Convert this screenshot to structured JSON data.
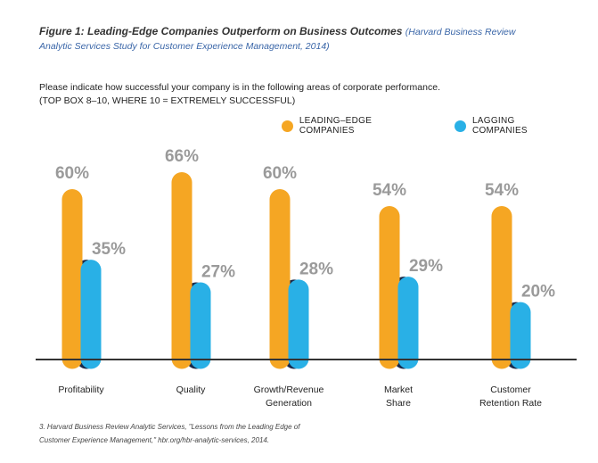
{
  "figure": {
    "title": "Figure 1: Leading-Edge Companies Outperform on Business Outcomes",
    "source_line_1": "(Harvard Business Review",
    "source_line_2": "Analytic Services Study for Customer Experience Management, 2014)"
  },
  "question": {
    "line1": "Please indicate how successful your company is in the following areas of corporate performance.",
    "line2": "(TOP BOX 8–10, WHERE 10 = EXTREMELY SUCCESSFUL)"
  },
  "footnote": {
    "line1": "3. Harvard Business Review Analytic Services, \"Lessons from the Leading Edge of",
    "line2": "Customer Experience Management,\" hbr.org/hbr-analytic-services, 2014."
  },
  "colors": {
    "leading": "#f5a623",
    "lagging": "#29b0e6",
    "lagging_shadow": "#1a2a4a",
    "value_label": "#9a9a9a",
    "baseline": "#333333"
  },
  "chart_data": {
    "type": "bar",
    "title": "Figure 1: Leading-Edge Companies Outperform on Business Outcomes",
    "ylim": [
      0,
      70
    ],
    "categories": [
      [
        "Profitability"
      ],
      [
        "Quality"
      ],
      [
        "Growth/Revenue",
        "Generation"
      ],
      [
        "Market",
        "Share"
      ],
      [
        "Customer",
        "Retention Rate"
      ]
    ],
    "series": [
      {
        "name": "LEADING–EDGE COMPANIES",
        "values": [
          60,
          66,
          60,
          54,
          54
        ]
      },
      {
        "name": "LAGGING COMPANIES",
        "values": [
          35,
          27,
          28,
          29,
          20
        ]
      }
    ],
    "value_suffix": "%"
  }
}
